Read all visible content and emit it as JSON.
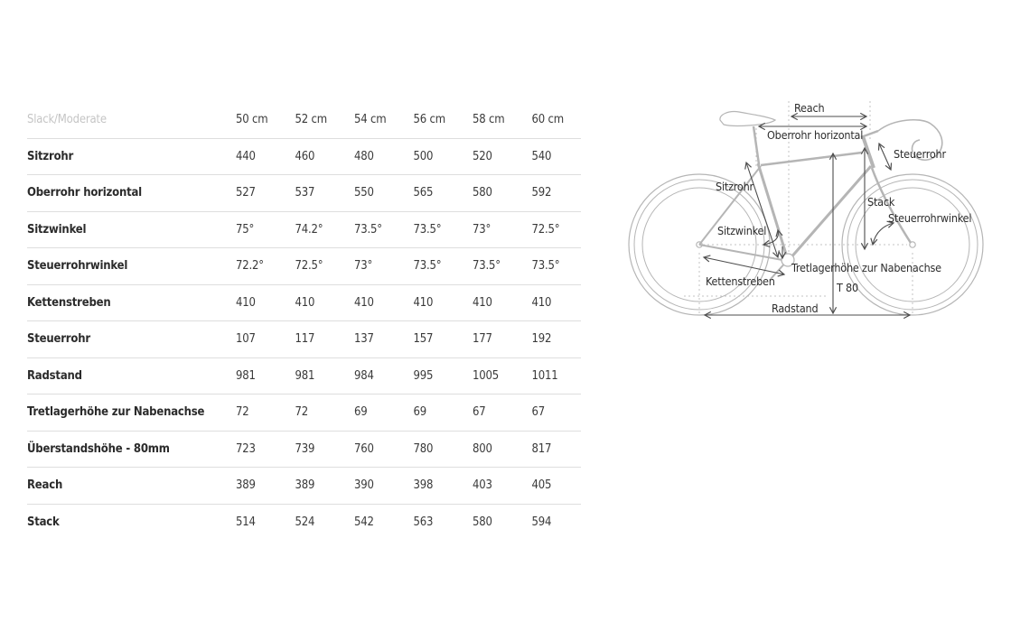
{
  "chart_data": {
    "type": "table",
    "title": "Slack/Moderate",
    "columns": [
      "50 cm",
      "52 cm",
      "54 cm",
      "56 cm",
      "58 cm",
      "60 cm"
    ],
    "rows": [
      {
        "label": "Sitzrohr",
        "values": [
          "440",
          "460",
          "480",
          "500",
          "520",
          "540"
        ]
      },
      {
        "label": "Oberrohr horizontal",
        "values": [
          "527",
          "537",
          "550",
          "565",
          "580",
          "592"
        ]
      },
      {
        "label": "Sitzwinkel",
        "values": [
          "75°",
          "74.2°",
          "73.5°",
          "73.5°",
          "73°",
          "72.5°"
        ]
      },
      {
        "label": "Steuerrohrwinkel",
        "values": [
          "72.2°",
          "72.5°",
          "73°",
          "73.5°",
          "73.5°",
          "73.5°"
        ]
      },
      {
        "label": "Kettenstreben",
        "values": [
          "410",
          "410",
          "410",
          "410",
          "410",
          "410"
        ]
      },
      {
        "label": "Steuerrohr",
        "values": [
          "107",
          "117",
          "137",
          "157",
          "177",
          "192"
        ]
      },
      {
        "label": "Radstand",
        "values": [
          "981",
          "981",
          "984",
          "995",
          "1005",
          "1011"
        ]
      },
      {
        "label": "Tretlagerhöhe zur Nabenachse",
        "values": [
          "72",
          "72",
          "69",
          "69",
          "67",
          "67"
        ]
      },
      {
        "label": "Überstandshöhe - 80mm",
        "values": [
          "723",
          "739",
          "760",
          "780",
          "800",
          "817"
        ]
      },
      {
        "label": "Reach",
        "values": [
          "389",
          "389",
          "390",
          "398",
          "403",
          "405"
        ]
      },
      {
        "label": "Stack",
        "values": [
          "514",
          "524",
          "542",
          "563",
          "580",
          "594"
        ]
      }
    ]
  },
  "diagram": {
    "labels": {
      "reach": "Reach",
      "oberrohr_horizontal": "Oberrohr horizontal",
      "steuerrohr": "Steuerrohr",
      "sitzrohr": "Sitzrohr",
      "stack": "Stack",
      "steuerrohrwinkel": "Steuerrohrwinkel",
      "sitzwinkel": "Sitzwinkel",
      "tretlagerhoehe": "Tretlagerhöhe zur Nabenachse",
      "kettenstreben": "Kettenstreben",
      "t80": "T 80",
      "radstand": "Radstand"
    }
  },
  "colors": {
    "row_label": "#2b2b2b",
    "value_text": "#3a3a3a",
    "muted_header": "#c5c5c5",
    "divider": "#dedede",
    "bike_outline": "#b5b5b5",
    "dimension_lines": "#4d4d4d",
    "background": "#ffffff"
  }
}
